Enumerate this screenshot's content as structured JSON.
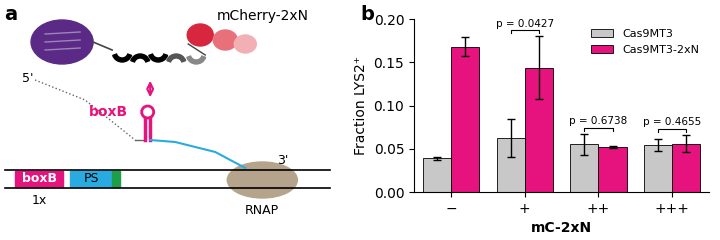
{
  "diagram": {
    "panel": "a",
    "protein": "mCherry-2xN",
    "rna_5end": "5'",
    "hairpin": "boxB",
    "elements": [
      "boxB",
      "PS"
    ],
    "copies": "1x",
    "polymerase": "RNAP",
    "rna_3end": "3'"
  },
  "chart_data": {
    "type": "bar",
    "panel": "b",
    "x_label": "mC-2xN",
    "y_label": "Fraction LYS2⁺",
    "categories": [
      "−",
      "+",
      "++",
      "+++"
    ],
    "series": [
      {
        "name": "Cas9MT3",
        "color": "#c8c8c8",
        "values": [
          0.039,
          0.062,
          0.055,
          0.054
        ],
        "errors": [
          0.002,
          0.022,
          0.012,
          0.007
        ]
      },
      {
        "name": "Cas9MT3-2xN",
        "color": "#e6127d",
        "values": [
          0.168,
          0.144,
          0.052,
          0.056
        ],
        "errors": [
          0.011,
          0.036,
          0.001,
          0.01
        ]
      }
    ],
    "annotations": [
      {
        "text": "p = 0.0427",
        "category": "+"
      },
      {
        "text": "p = 0.6738",
        "category": "++"
      },
      {
        "text": "p = 0.4655",
        "category": "+++"
      }
    ],
    "ylim": [
      0,
      0.2
    ],
    "yticks": [
      {
        "value": 0,
        "label": "0.00"
      },
      {
        "value": 0.05,
        "label": "0.05"
      },
      {
        "value": 0.1,
        "label": "0.10"
      },
      {
        "value": 0.15,
        "label": "0.15"
      },
      {
        "value": 0.2,
        "label": "0.20"
      }
    ],
    "legend": "upper right",
    "grid": false
  }
}
